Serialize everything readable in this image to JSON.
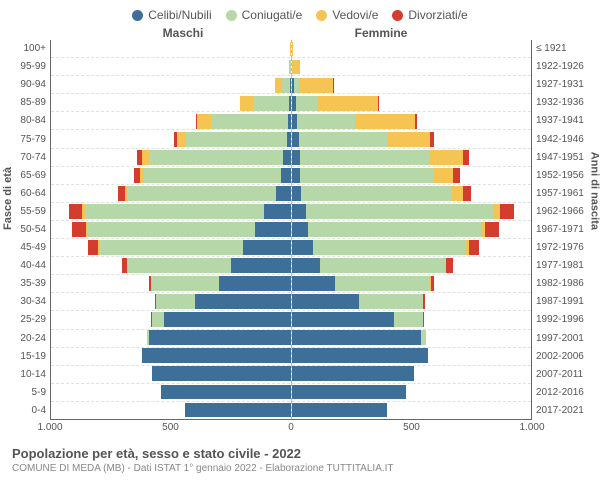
{
  "legend": [
    {
      "label": "Celibi/Nubili",
      "color": "#3d6f99"
    },
    {
      "label": "Coniugati/e",
      "color": "#b6d7a8"
    },
    {
      "label": "Vedovi/e",
      "color": "#f6c453"
    },
    {
      "label": "Divorziati/e",
      "color": "#d43c2e"
    }
  ],
  "headers": {
    "male": "Maschi",
    "female": "Femmine"
  },
  "ylabels": {
    "left": "Fasce di età",
    "right": "Anni di nascita"
  },
  "xaxis": {
    "max": 1000,
    "ticks": [
      1000,
      500,
      0,
      500,
      1000
    ],
    "tick_labels": [
      "1.000",
      "500",
      "0",
      "500",
      "1.000"
    ]
  },
  "rows": [
    {
      "age": "100+",
      "birth": "≤ 1921",
      "m": {
        "c": 0,
        "m": 0,
        "v": 1,
        "d": 0
      },
      "f": {
        "c": 0,
        "m": 0,
        "v": 6,
        "d": 0
      }
    },
    {
      "age": "95-99",
      "birth": "1922-1926",
      "m": {
        "c": 0,
        "m": 2,
        "v": 5,
        "d": 0
      },
      "f": {
        "c": 2,
        "m": 1,
        "v": 32,
        "d": 0
      }
    },
    {
      "age": "90-94",
      "birth": "1927-1931",
      "m": {
        "c": 1,
        "m": 35,
        "v": 30,
        "d": 0
      },
      "f": {
        "c": 10,
        "m": 20,
        "v": 145,
        "d": 2
      }
    },
    {
      "age": "85-89",
      "birth": "1932-1936",
      "m": {
        "c": 5,
        "m": 150,
        "v": 55,
        "d": 2
      },
      "f": {
        "c": 20,
        "m": 90,
        "v": 250,
        "d": 5
      }
    },
    {
      "age": "80-84",
      "birth": "1937-1941",
      "m": {
        "c": 10,
        "m": 320,
        "v": 60,
        "d": 5
      },
      "f": {
        "c": 25,
        "m": 240,
        "v": 250,
        "d": 10
      }
    },
    {
      "age": "75-79",
      "birth": "1942-1946",
      "m": {
        "c": 15,
        "m": 420,
        "v": 40,
        "d": 10
      },
      "f": {
        "c": 30,
        "m": 370,
        "v": 180,
        "d": 15
      }
    },
    {
      "age": "70-74",
      "birth": "1947-1951",
      "m": {
        "c": 30,
        "m": 560,
        "v": 30,
        "d": 20
      },
      "f": {
        "c": 35,
        "m": 540,
        "v": 140,
        "d": 25
      }
    },
    {
      "age": "65-69",
      "birth": "1952-1956",
      "m": {
        "c": 40,
        "m": 570,
        "v": 18,
        "d": 25
      },
      "f": {
        "c": 35,
        "m": 560,
        "v": 80,
        "d": 30
      }
    },
    {
      "age": "60-64",
      "birth": "1957-1961",
      "m": {
        "c": 60,
        "m": 620,
        "v": 12,
        "d": 30
      },
      "f": {
        "c": 40,
        "m": 630,
        "v": 45,
        "d": 35
      }
    },
    {
      "age": "55-59",
      "birth": "1962-1966",
      "m": {
        "c": 110,
        "m": 750,
        "v": 10,
        "d": 55
      },
      "f": {
        "c": 60,
        "m": 780,
        "v": 30,
        "d": 60
      }
    },
    {
      "age": "50-54",
      "birth": "1967-1971",
      "m": {
        "c": 150,
        "m": 700,
        "v": 6,
        "d": 55
      },
      "f": {
        "c": 70,
        "m": 720,
        "v": 18,
        "d": 60
      }
    },
    {
      "age": "45-49",
      "birth": "1972-1976",
      "m": {
        "c": 200,
        "m": 600,
        "v": 4,
        "d": 40
      },
      "f": {
        "c": 90,
        "m": 640,
        "v": 10,
        "d": 45
      }
    },
    {
      "age": "40-44",
      "birth": "1977-1981",
      "m": {
        "c": 250,
        "m": 430,
        "v": 2,
        "d": 20
      },
      "f": {
        "c": 120,
        "m": 520,
        "v": 5,
        "d": 30
      }
    },
    {
      "age": "35-39",
      "birth": "1982-1986",
      "m": {
        "c": 300,
        "m": 280,
        "v": 1,
        "d": 10
      },
      "f": {
        "c": 180,
        "m": 400,
        "v": 2,
        "d": 15
      }
    },
    {
      "age": "30-34",
      "birth": "1987-1991",
      "m": {
        "c": 400,
        "m": 160,
        "v": 0,
        "d": 5
      },
      "f": {
        "c": 280,
        "m": 270,
        "v": 1,
        "d": 8
      }
    },
    {
      "age": "25-29",
      "birth": "1992-1996",
      "m": {
        "c": 530,
        "m": 50,
        "v": 0,
        "d": 2
      },
      "f": {
        "c": 430,
        "m": 120,
        "v": 0,
        "d": 3
      }
    },
    {
      "age": "20-24",
      "birth": "1997-2001",
      "m": {
        "c": 590,
        "m": 8,
        "v": 0,
        "d": 0
      },
      "f": {
        "c": 540,
        "m": 20,
        "v": 0,
        "d": 0
      }
    },
    {
      "age": "15-19",
      "birth": "2002-2006",
      "m": {
        "c": 620,
        "m": 0,
        "v": 0,
        "d": 0
      },
      "f": {
        "c": 570,
        "m": 0,
        "v": 0,
        "d": 0
      }
    },
    {
      "age": "10-14",
      "birth": "2007-2011",
      "m": {
        "c": 580,
        "m": 0,
        "v": 0,
        "d": 0
      },
      "f": {
        "c": 510,
        "m": 0,
        "v": 0,
        "d": 0
      }
    },
    {
      "age": "5-9",
      "birth": "2012-2016",
      "m": {
        "c": 540,
        "m": 0,
        "v": 0,
        "d": 0
      },
      "f": {
        "c": 480,
        "m": 0,
        "v": 0,
        "d": 0
      }
    },
    {
      "age": "0-4",
      "birth": "2017-2021",
      "m": {
        "c": 440,
        "m": 0,
        "v": 0,
        "d": 0
      },
      "f": {
        "c": 400,
        "m": 0,
        "v": 0,
        "d": 0
      }
    }
  ],
  "colors": {
    "c": "#3d6f99",
    "m": "#b6d7a8",
    "v": "#f6c453",
    "d": "#d43c2e"
  },
  "title": "Popolazione per età, sesso e stato civile - 2022",
  "subtitle": "COMUNE DI MEDA (MB) - Dati ISTAT 1° gennaio 2022 - Elaborazione TUTTITALIA.IT"
}
